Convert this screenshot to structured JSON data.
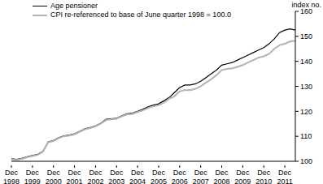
{
  "chart_data": {
    "type": "line",
    "y_label": "index no.",
    "categories": [
      "Dec 1998",
      null,
      null,
      null,
      "Dec 1999",
      null,
      null,
      null,
      "Dec 2000",
      null,
      null,
      null,
      "Dec 2001",
      null,
      null,
      null,
      "Dec 2002",
      null,
      null,
      null,
      "Dec 2003",
      null,
      null,
      null,
      "Dec 2004",
      null,
      null,
      null,
      "Dec 2005",
      null,
      null,
      null,
      "Dec 2006",
      null,
      null,
      null,
      "Dec 2007",
      null,
      null,
      null,
      "Dec 2008",
      null,
      null,
      null,
      "Dec 2009",
      null,
      null,
      null,
      "Dec 2010",
      null,
      null,
      null,
      "Dec 2011",
      null,
      null
    ],
    "series": [
      {
        "name": "Age pensioner",
        "color": "#000000",
        "values": [
          101.0,
          100.8,
          101.2,
          101.8,
          102.3,
          102.8,
          104.0,
          107.8,
          108.3,
          109.5,
          110.2,
          110.5,
          111.0,
          112.0,
          113.0,
          113.5,
          114.2,
          115.2,
          116.8,
          117.0,
          117.2,
          118.2,
          119.0,
          119.3,
          120.0,
          120.8,
          121.8,
          122.5,
          123.0,
          124.2,
          125.5,
          127.5,
          129.5,
          130.5,
          130.5,
          131.0,
          132.0,
          133.5,
          135.0,
          136.5,
          138.5,
          139.0,
          139.5,
          140.5,
          141.5,
          142.5,
          143.5,
          144.5,
          145.5,
          147.0,
          149.0,
          151.5,
          152.5,
          153.0,
          152.5
        ]
      },
      {
        "name": "CPI re-referenced to base of June quarter 1998 = 100.0",
        "color": "#b3b3b3",
        "values": [
          100.7,
          100.6,
          101.0,
          101.6,
          102.1,
          102.6,
          103.8,
          107.6,
          108.1,
          109.3,
          110.0,
          110.3,
          110.8,
          111.8,
          112.8,
          113.3,
          114.0,
          115.0,
          116.5,
          116.8,
          117.0,
          118.0,
          118.7,
          119.0,
          119.7,
          120.4,
          121.3,
          122.0,
          122.5,
          123.5,
          125.0,
          126.0,
          128.0,
          128.5,
          128.5,
          129.0,
          130.0,
          131.5,
          132.8,
          134.5,
          136.5,
          137.0,
          137.2,
          137.8,
          138.5,
          139.5,
          140.5,
          141.5,
          142.0,
          143.0,
          145.0,
          146.5,
          147.0,
          148.0,
          148.2
        ]
      }
    ],
    "ylim": [
      100,
      160
    ],
    "yticks": [
      100,
      110,
      120,
      130,
      140,
      150,
      160
    ],
    "legend": "upper left",
    "grid": false
  }
}
